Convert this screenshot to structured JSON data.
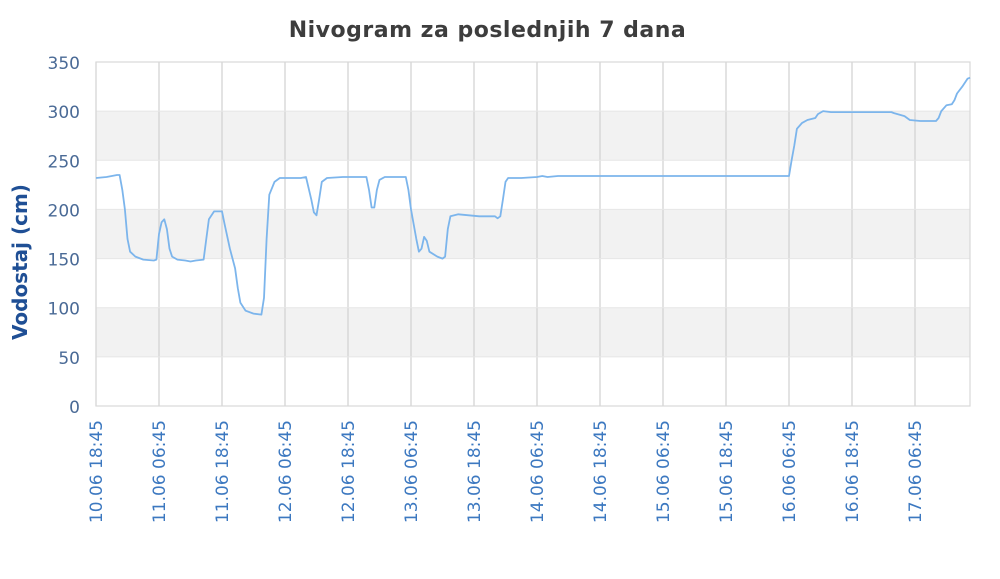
{
  "chart_data": {
    "type": "line",
    "title": "Nivogram za poslednjih 7 dana",
    "xlabel": "",
    "ylabel": "Vodostaj (cm)",
    "ylim": [
      0,
      350
    ],
    "yticks": [
      0,
      50,
      100,
      150,
      200,
      250,
      300,
      350
    ],
    "grid": true,
    "alternate_bands": true,
    "legend": "none",
    "line_color": "#7cb5ec",
    "xticks": [
      "10.06 18:45",
      "11.06 06:45",
      "11.06 18:45",
      "12.06 06:45",
      "12.06 18:45",
      "13.06 06:45",
      "13.06 18:45",
      "14.06 06:45",
      "14.06 18:45",
      "15.06 06:45",
      "15.06 18:45",
      "16.06 06:45",
      "16.06 18:45",
      "17.06 06:45"
    ],
    "x_unit": "hours since 10.06 18:45",
    "series": [
      {
        "name": "Vodostaj",
        "points": [
          [
            0,
            232
          ],
          [
            2,
            233
          ],
          [
            3,
            234
          ],
          [
            4,
            235
          ],
          [
            4.5,
            235
          ],
          [
            5,
            220
          ],
          [
            5.5,
            200
          ],
          [
            6,
            170
          ],
          [
            6.5,
            157
          ],
          [
            7.5,
            152
          ],
          [
            9,
            149
          ],
          [
            11,
            148
          ],
          [
            11.5,
            149
          ],
          [
            12,
            175
          ],
          [
            12.5,
            187
          ],
          [
            13,
            190
          ],
          [
            13.5,
            180
          ],
          [
            14,
            160
          ],
          [
            14.5,
            152
          ],
          [
            15.5,
            149
          ],
          [
            17,
            148
          ],
          [
            18,
            147
          ],
          [
            19,
            148
          ],
          [
            20.5,
            149
          ],
          [
            21,
            170
          ],
          [
            21.5,
            190
          ],
          [
            22.5,
            198
          ],
          [
            24,
            198
          ],
          [
            24.5,
            185
          ],
          [
            25.5,
            160
          ],
          [
            26.5,
            140
          ],
          [
            27,
            120
          ],
          [
            27.5,
            105
          ],
          [
            28.5,
            97
          ],
          [
            30,
            94
          ],
          [
            31.5,
            93
          ],
          [
            32,
            110
          ],
          [
            32.5,
            170
          ],
          [
            33,
            215
          ],
          [
            34,
            228
          ],
          [
            35,
            232
          ],
          [
            37,
            232
          ],
          [
            39,
            232
          ],
          [
            40,
            233
          ],
          [
            41,
            210
          ],
          [
            41.5,
            197
          ],
          [
            42,
            194
          ],
          [
            42.5,
            210
          ],
          [
            43,
            228
          ],
          [
            44,
            232
          ],
          [
            47,
            233
          ],
          [
            51.5,
            233
          ],
          [
            52,
            220
          ],
          [
            52.5,
            202
          ],
          [
            53,
            202
          ],
          [
            53.5,
            220
          ],
          [
            54,
            230
          ],
          [
            55,
            233
          ],
          [
            59,
            233
          ],
          [
            59.5,
            220
          ],
          [
            60,
            200
          ],
          [
            61,
            170
          ],
          [
            61.5,
            157
          ],
          [
            62,
            160
          ],
          [
            62.5,
            172
          ],
          [
            63,
            168
          ],
          [
            63.5,
            157
          ],
          [
            65,
            152
          ],
          [
            66,
            150
          ],
          [
            66.5,
            152
          ],
          [
            67,
            180
          ],
          [
            67.5,
            193
          ],
          [
            69,
            195
          ],
          [
            71,
            194
          ],
          [
            73,
            193
          ],
          [
            76,
            193
          ],
          [
            76.5,
            191
          ],
          [
            77,
            193
          ],
          [
            77.5,
            210
          ],
          [
            78,
            228
          ],
          [
            78.5,
            232
          ],
          [
            81,
            232
          ],
          [
            84,
            233
          ],
          [
            85,
            234
          ],
          [
            86,
            233
          ],
          [
            88,
            234
          ],
          [
            94,
            234
          ],
          [
            100,
            234
          ],
          [
            106,
            234
          ],
          [
            112,
            234
          ],
          [
            131,
            234
          ],
          [
            132,
            234
          ],
          [
            132.5,
            250
          ],
          [
            133,
            265
          ],
          [
            133.5,
            282
          ],
          [
            134.5,
            288
          ],
          [
            135.5,
            291
          ],
          [
            137,
            293
          ],
          [
            137.5,
            297
          ],
          [
            138.5,
            300
          ],
          [
            140,
            299
          ],
          [
            148,
            299
          ],
          [
            151.5,
            299
          ],
          [
            152,
            298
          ],
          [
            154,
            295
          ],
          [
            155,
            291
          ],
          [
            157,
            290
          ],
          [
            160,
            290
          ],
          [
            160.5,
            293
          ],
          [
            161,
            300
          ],
          [
            162,
            306
          ],
          [
            163,
            307
          ],
          [
            163.5,
            311
          ],
          [
            164,
            318
          ],
          [
            165,
            325
          ],
          [
            166,
            333
          ],
          [
            166.5,
            334
          ]
        ]
      }
    ]
  }
}
